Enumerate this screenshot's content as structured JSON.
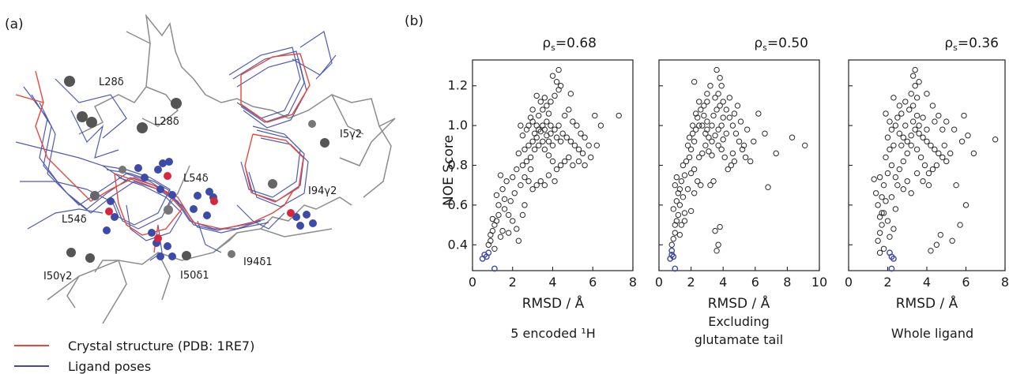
{
  "panel_a": {
    "label": "(a)",
    "residue_labels": [
      "L28δ",
      "L28δ",
      "I5γ2",
      "L54δ",
      "L54δ",
      "I94γ2",
      "I94δ1",
      "I50γ2",
      "I50δ1"
    ],
    "legend": [
      {
        "label": "Crystal structure (PDB: 1RE7)",
        "color": "#e8483b"
      },
      {
        "label": "Ligand poses",
        "color": "#3e4aa8"
      }
    ],
    "colors": {
      "crystal": "#e8483b",
      "poses": "#3e4aa8",
      "protein": "#8c8c8c",
      "atoms": "#555555",
      "oxygen": "#d7263d"
    }
  },
  "panel_b": {
    "label": "(b)"
  },
  "chart_data": [
    {
      "type": "scatter",
      "rho_prefix": "ρ",
      "rho_sub": "s",
      "rho_value": "=0.68",
      "xlabel": "RMSD / Å",
      "ylabel": "NOE Score",
      "caption_lines": [
        "5 encoded ¹H"
      ],
      "xlim": [
        0,
        8
      ],
      "ylim": [
        0.27,
        1.33
      ],
      "xticks": [
        0,
        2,
        4,
        6,
        8
      ],
      "yticks": [
        0.4,
        0.6,
        0.8,
        1.0,
        1.2
      ],
      "ytick_labels": [
        "0.4",
        "0.6",
        "0.8",
        "1.0",
        "1.2"
      ],
      "highlight_color": "#3e4aa8",
      "highlight": [
        [
          0.5,
          0.33
        ],
        [
          0.6,
          0.35
        ],
        [
          0.7,
          0.34
        ],
        [
          0.8,
          0.36
        ],
        [
          1.1,
          0.28
        ]
      ],
      "points": [
        [
          0.8,
          0.4
        ],
        [
          0.9,
          0.42
        ],
        [
          1.0,
          0.47
        ],
        [
          1.1,
          0.5
        ],
        [
          1.2,
          0.52
        ],
        [
          1.0,
          0.53
        ],
        [
          1.3,
          0.55
        ],
        [
          1.1,
          0.38
        ],
        [
          0.9,
          0.45
        ],
        [
          1.4,
          0.44
        ],
        [
          1.5,
          0.47
        ],
        [
          1.3,
          0.6
        ],
        [
          1.6,
          0.58
        ],
        [
          1.8,
          0.55
        ],
        [
          2.0,
          0.52
        ],
        [
          2.2,
          0.48
        ],
        [
          1.9,
          0.62
        ],
        [
          2.1,
          0.66
        ],
        [
          1.5,
          0.68
        ],
        [
          1.7,
          0.72
        ],
        [
          1.4,
          0.75
        ],
        [
          2.3,
          0.42
        ],
        [
          1.8,
          0.46
        ],
        [
          2.5,
          0.55
        ],
        [
          2.6,
          0.6
        ],
        [
          2.4,
          0.7
        ],
        [
          2.8,
          0.72
        ],
        [
          3.0,
          0.68
        ],
        [
          3.2,
          0.7
        ],
        [
          3.4,
          0.72
        ],
        [
          2.0,
          0.74
        ],
        [
          2.2,
          0.78
        ],
        [
          2.5,
          0.8
        ],
        [
          2.7,
          0.82
        ],
        [
          2.9,
          0.84
        ],
        [
          2.3,
          0.86
        ],
        [
          2.6,
          0.88
        ],
        [
          2.8,
          0.9
        ],
        [
          3.0,
          0.92
        ],
        [
          3.2,
          0.94
        ],
        [
          3.1,
          0.88
        ],
        [
          3.3,
          0.9
        ],
        [
          3.5,
          0.92
        ],
        [
          3.7,
          0.95
        ],
        [
          3.6,
          0.98
        ],
        [
          3.4,
          0.97
        ],
        [
          3.2,
          1.0
        ],
        [
          3.0,
          1.02
        ],
        [
          2.8,
          1.0
        ],
        [
          3.9,
          0.96
        ],
        [
          4.1,
          0.98
        ],
        [
          4.3,
          1.0
        ],
        [
          4.5,
          0.96
        ],
        [
          4.7,
          0.94
        ],
        [
          4.9,
          0.92
        ],
        [
          5.1,
          0.9
        ],
        [
          5.3,
          0.88
        ],
        [
          5.5,
          0.86
        ],
        [
          4.8,
          0.84
        ],
        [
          4.6,
          0.82
        ],
        [
          4.4,
          0.8
        ],
        [
          4.2,
          0.78
        ],
        [
          4.0,
          0.82
        ],
        [
          3.8,
          0.85
        ],
        [
          3.6,
          0.88
        ],
        [
          3.3,
          1.05
        ],
        [
          3.5,
          1.08
        ],
        [
          3.7,
          1.1
        ],
        [
          3.9,
          1.12
        ],
        [
          4.1,
          1.15
        ],
        [
          4.3,
          1.18
        ],
        [
          4.2,
          1.22
        ],
        [
          4.4,
          1.2
        ],
        [
          4.0,
          1.25
        ],
        [
          4.3,
          1.28
        ],
        [
          3.8,
          1.06
        ],
        [
          3.6,
          1.14
        ],
        [
          3.4,
          1.12
        ],
        [
          3.2,
          1.15
        ],
        [
          3.0,
          1.08
        ],
        [
          2.9,
          1.04
        ],
        [
          2.7,
          0.98
        ],
        [
          2.5,
          0.95
        ],
        [
          2.4,
          1.0
        ],
        [
          4.6,
          1.05
        ],
        [
          4.8,
          1.08
        ],
        [
          5.0,
          1.02
        ],
        [
          5.2,
          1.0
        ],
        [
          5.4,
          0.96
        ],
        [
          5.6,
          0.94
        ],
        [
          5.8,
          0.9
        ],
        [
          5.9,
          0.84
        ],
        [
          5.6,
          0.8
        ],
        [
          5.3,
          0.82
        ],
        [
          5.0,
          0.8
        ],
        [
          4.9,
          1.16
        ],
        [
          6.1,
          1.05
        ],
        [
          6.4,
          1.0
        ],
        [
          7.3,
          1.05
        ],
        [
          6.2,
          0.9
        ],
        [
          3.9,
          1.0
        ],
        [
          3.7,
          1.02
        ],
        [
          3.5,
          1.0
        ],
        [
          3.3,
          0.98
        ],
        [
          3.1,
          0.96
        ],
        [
          4.2,
          0.94
        ],
        [
          4.4,
          0.92
        ],
        [
          4.0,
          0.9
        ],
        [
          3.8,
          0.92
        ],
        [
          2.6,
          0.74
        ],
        [
          2.9,
          0.78
        ],
        [
          3.6,
          0.7
        ],
        [
          3.8,
          0.75
        ],
        [
          4.1,
          0.72
        ],
        [
          1.2,
          0.65
        ],
        [
          1.6,
          0.63
        ]
      ]
    },
    {
      "type": "scatter",
      "rho_prefix": "ρ",
      "rho_sub": "s",
      "rho_value": "=0.50",
      "xlabel": "RMSD / Å",
      "ylabel": "",
      "caption_lines": [
        "Excluding",
        "glutamate tail"
      ],
      "xlim": [
        0,
        10
      ],
      "ylim": [
        0.27,
        1.33
      ],
      "xticks": [
        0,
        2,
        4,
        6,
        8,
        10
      ],
      "yticks": [
        0.4,
        0.6,
        0.8,
        1.0,
        1.2
      ],
      "ytick_labels": [],
      "highlight_color": "#3e4aa8",
      "highlight": [
        [
          0.7,
          0.33
        ],
        [
          0.8,
          0.35
        ],
        [
          0.9,
          0.34
        ],
        [
          0.8,
          0.37
        ],
        [
          1.0,
          0.28
        ]
      ],
      "points": [
        [
          0.8,
          0.4
        ],
        [
          0.9,
          0.43
        ],
        [
          1.0,
          0.46
        ],
        [
          1.0,
          0.5
        ],
        [
          1.1,
          0.52
        ],
        [
          1.2,
          0.55
        ],
        [
          0.9,
          0.58
        ],
        [
          1.1,
          0.62
        ],
        [
          1.3,
          0.6
        ],
        [
          1.2,
          0.66
        ],
        [
          1.0,
          0.7
        ],
        [
          1.4,
          0.72
        ],
        [
          1.6,
          0.75
        ],
        [
          1.3,
          0.68
        ],
        [
          1.5,
          0.64
        ],
        [
          1.1,
          0.74
        ],
        [
          1.5,
          0.8
        ],
        [
          1.7,
          0.82
        ],
        [
          1.9,
          0.84
        ],
        [
          2.0,
          0.88
        ],
        [
          1.8,
          0.9
        ],
        [
          2.2,
          0.92
        ],
        [
          2.1,
          0.96
        ],
        [
          2.3,
          0.98
        ],
        [
          2.5,
          1.0
        ],
        [
          2.4,
          1.04
        ],
        [
          2.6,
          1.08
        ],
        [
          2.8,
          1.1
        ],
        [
          3.0,
          1.12
        ],
        [
          2.7,
          1.0
        ],
        [
          2.9,
          0.96
        ],
        [
          3.1,
          0.94
        ],
        [
          3.3,
          0.92
        ],
        [
          3.5,
          0.95
        ],
        [
          3.7,
          0.98
        ],
        [
          3.9,
          1.0
        ],
        [
          3.4,
          1.05
        ],
        [
          3.6,
          1.08
        ],
        [
          3.8,
          1.1
        ],
        [
          3.5,
          1.14
        ],
        [
          3.7,
          1.16
        ],
        [
          3.9,
          1.2
        ],
        [
          3.8,
          1.24
        ],
        [
          3.6,
          1.28
        ],
        [
          4.0,
          1.12
        ],
        [
          4.2,
          1.08
        ],
        [
          4.4,
          1.04
        ],
        [
          4.6,
          1.0
        ],
        [
          4.8,
          0.96
        ],
        [
          5.0,
          0.92
        ],
        [
          5.2,
          0.88
        ],
        [
          5.4,
          0.84
        ],
        [
          4.7,
          0.82
        ],
        [
          4.5,
          0.8
        ],
        [
          4.3,
          0.78
        ],
        [
          4.1,
          0.84
        ],
        [
          3.9,
          0.88
        ],
        [
          3.7,
          0.9
        ],
        [
          2.2,
          0.78
        ],
        [
          2.0,
          0.76
        ],
        [
          2.4,
          0.72
        ],
        [
          2.6,
          0.7
        ],
        [
          1.8,
          0.68
        ],
        [
          2.2,
          0.66
        ],
        [
          3.2,
          0.7
        ],
        [
          3.4,
          0.72
        ],
        [
          3.0,
          1.02
        ],
        [
          2.8,
          1.05
        ],
        [
          4.4,
          1.14
        ],
        [
          4.7,
          1.06
        ],
        [
          5.1,
          1.02
        ],
        [
          5.5,
          0.98
        ],
        [
          5.9,
          0.92
        ],
        [
          6.2,
          1.06
        ],
        [
          6.6,
          0.96
        ],
        [
          7.3,
          0.86
        ],
        [
          8.3,
          0.94
        ],
        [
          9.1,
          0.9
        ],
        [
          6.8,
          0.69
        ],
        [
          3.5,
          0.47
        ],
        [
          3.8,
          0.49
        ],
        [
          3.7,
          0.4
        ],
        [
          3.6,
          0.37
        ],
        [
          2.0,
          0.57
        ],
        [
          1.6,
          0.56
        ],
        [
          1.3,
          0.45
        ],
        [
          3.3,
          0.85
        ],
        [
          3.1,
          0.87
        ],
        [
          2.9,
          0.9
        ],
        [
          4.0,
          0.93
        ],
        [
          4.2,
          0.96
        ],
        [
          2.5,
          0.84
        ],
        [
          2.7,
          0.86
        ],
        [
          1.9,
          0.94
        ],
        [
          2.1,
          1.0
        ],
        [
          2.3,
          1.06
        ],
        [
          2.5,
          1.12
        ],
        [
          3.0,
          1.16
        ],
        [
          3.2,
          1.2
        ],
        [
          2.2,
          1.22
        ],
        [
          4.9,
          1.1
        ],
        [
          5.3,
          0.9
        ],
        [
          5.7,
          0.82
        ],
        [
          4.6,
          0.86
        ],
        [
          4.0,
          1.04
        ],
        [
          3.3,
          1.0
        ],
        [
          3.0,
          0.98
        ],
        [
          1.4,
          0.5
        ],
        [
          1.6,
          0.52
        ]
      ]
    },
    {
      "type": "scatter",
      "rho_prefix": "ρ",
      "rho_sub": "s",
      "rho_value": "=0.36",
      "xlabel": "RMSD / Å",
      "ylabel": "",
      "caption_lines": [
        "Whole ligand"
      ],
      "xlim": [
        0,
        8
      ],
      "ylim": [
        0.27,
        1.33
      ],
      "xticks": [
        0,
        2,
        4,
        6,
        8
      ],
      "yticks": [
        0.4,
        0.6,
        0.8,
        1.0,
        1.2
      ],
      "ytick_labels": [],
      "highlight_color": "#3e4aa8",
      "highlight": [
        [
          2.1,
          0.36
        ],
        [
          2.2,
          0.34
        ],
        [
          2.3,
          0.33
        ],
        [
          2.2,
          0.28
        ]
      ],
      "points": [
        [
          1.5,
          0.42
        ],
        [
          1.6,
          0.46
        ],
        [
          1.7,
          0.5
        ],
        [
          1.6,
          0.54
        ],
        [
          1.8,
          0.56
        ],
        [
          1.5,
          0.6
        ],
        [
          1.7,
          0.64
        ],
        [
          1.9,
          0.62
        ],
        [
          1.8,
          0.7
        ],
        [
          1.6,
          0.74
        ],
        [
          2.0,
          0.76
        ],
        [
          2.2,
          0.8
        ],
        [
          1.9,
          0.84
        ],
        [
          2.1,
          0.88
        ],
        [
          2.3,
          0.9
        ],
        [
          2.0,
          0.94
        ],
        [
          2.2,
          0.98
        ],
        [
          2.4,
          1.0
        ],
        [
          2.6,
          0.96
        ],
        [
          2.8,
          0.94
        ],
        [
          3.0,
          0.92
        ],
        [
          3.2,
          0.95
        ],
        [
          3.4,
          0.98
        ],
        [
          3.3,
          1.02
        ],
        [
          3.5,
          1.05
        ],
        [
          3.1,
          1.08
        ],
        [
          3.3,
          1.1
        ],
        [
          3.5,
          1.14
        ],
        [
          3.2,
          1.16
        ],
        [
          3.4,
          1.2
        ],
        [
          3.6,
          1.22
        ],
        [
          3.3,
          1.25
        ],
        [
          3.4,
          1.28
        ],
        [
          2.9,
          1.12
        ],
        [
          2.7,
          1.06
        ],
        [
          2.5,
          1.04
        ],
        [
          3.6,
          0.96
        ],
        [
          3.8,
          0.94
        ],
        [
          4.0,
          0.92
        ],
        [
          4.2,
          0.9
        ],
        [
          4.4,
          0.88
        ],
        [
          4.6,
          0.86
        ],
        [
          4.8,
          0.84
        ],
        [
          5.0,
          0.82
        ],
        [
          4.5,
          0.8
        ],
        [
          4.3,
          0.78
        ],
        [
          4.1,
          0.76
        ],
        [
          3.9,
          0.8
        ],
        [
          3.7,
          0.84
        ],
        [
          3.5,
          0.88
        ],
        [
          3.0,
          0.86
        ],
        [
          2.8,
          0.82
        ],
        [
          2.6,
          0.78
        ],
        [
          2.4,
          0.74
        ],
        [
          2.5,
          0.7
        ],
        [
          2.8,
          0.68
        ],
        [
          3.0,
          0.72
        ],
        [
          3.2,
          0.66
        ],
        [
          2.2,
          0.64
        ],
        [
          1.4,
          0.66
        ],
        [
          1.3,
          0.73
        ],
        [
          2.0,
          0.52
        ],
        [
          2.3,
          0.48
        ],
        [
          2.1,
          0.44
        ],
        [
          1.8,
          0.38
        ],
        [
          1.6,
          0.36
        ],
        [
          4.0,
          1.16
        ],
        [
          4.3,
          1.1
        ],
        [
          4.6,
          1.05
        ],
        [
          5.0,
          1.02
        ],
        [
          5.4,
          0.98
        ],
        [
          5.8,
          0.92
        ],
        [
          6.1,
          0.95
        ],
        [
          6.4,
          0.86
        ],
        [
          7.5,
          0.93
        ],
        [
          5.9,
          1.05
        ],
        [
          6.0,
          0.6
        ],
        [
          5.7,
          0.5
        ],
        [
          4.7,
          0.45
        ],
        [
          5.3,
          0.42
        ],
        [
          4.2,
          0.37
        ],
        [
          4.5,
          0.4
        ],
        [
          5.5,
          0.7
        ],
        [
          4.1,
          0.7
        ],
        [
          3.6,
          1.0
        ],
        [
          3.2,
          0.9
        ],
        [
          2.9,
          1.0
        ],
        [
          2.6,
          1.1
        ],
        [
          2.3,
          1.14
        ],
        [
          4.4,
          1.02
        ],
        [
          4.8,
          0.98
        ],
        [
          4.9,
          0.9
        ],
        [
          5.2,
          0.86
        ],
        [
          3.8,
          1.04
        ],
        [
          4.0,
          0.98
        ],
        [
          2.1,
          1.02
        ],
        [
          1.9,
          1.06
        ],
        [
          2.7,
          0.9
        ],
        [
          3.5,
          0.76
        ],
        [
          3.8,
          0.72
        ],
        [
          2.4,
          0.58
        ],
        [
          1.7,
          0.56
        ]
      ]
    }
  ]
}
